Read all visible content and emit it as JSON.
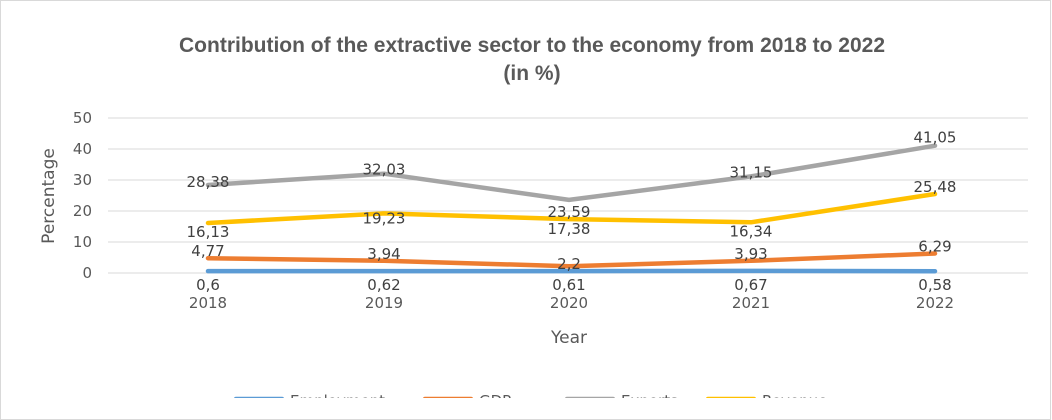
{
  "chart_data": {
    "type": "line",
    "title_line1": "Contribution of the extractive sector to the economy from 2018 to 2022",
    "title_line2": "(in %)",
    "xlabel": "Year",
    "ylabel": "Percentage",
    "categories": [
      "2018",
      "2019",
      "2020",
      "2021",
      "2022"
    ],
    "ylim": [
      0,
      50
    ],
    "yticks": [
      0,
      10,
      20,
      30,
      40,
      50
    ],
    "grid": true,
    "legend_position": "bottom",
    "series": [
      {
        "name": "Employment",
        "color": "#5B9BD5",
        "values": [
          0.6,
          0.62,
          0.61,
          0.67,
          0.58
        ],
        "labels": [
          "0,6",
          "0,62",
          "0,61",
          "0,67",
          "0,58"
        ]
      },
      {
        "name": "GDP",
        "color": "#ED7D31",
        "values": [
          4.77,
          3.94,
          2.2,
          3.93,
          6.29
        ],
        "labels": [
          "4,77",
          "3,94",
          "2,2",
          "3,93",
          "6,29"
        ]
      },
      {
        "name": "Exports",
        "color": "#A5A5A5",
        "values": [
          28.38,
          32.03,
          23.59,
          31.15,
          41.05
        ],
        "labels": [
          "28,38",
          "32,03",
          "23,59",
          "31,15",
          "41,05"
        ]
      },
      {
        "name": "Revenue",
        "color": "#FFC000",
        "values": [
          16.13,
          19.23,
          17.38,
          16.34,
          25.48
        ],
        "labels": [
          "16,13",
          "19,23",
          "17,38",
          "16,34",
          "25,48"
        ]
      }
    ]
  }
}
